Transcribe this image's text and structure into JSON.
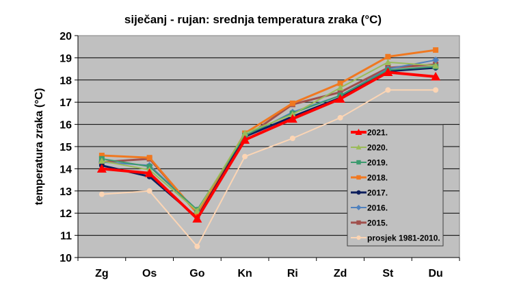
{
  "chart_data": {
    "type": "line",
    "title": "siječanj - rujan: srednja temperatura zraka (°C)",
    "xlabel": "",
    "ylabel": "temperatura zraka (°C)",
    "ylim": [
      10,
      20
    ],
    "yticks": [
      "10",
      "11",
      "12",
      "13",
      "14",
      "15",
      "16",
      "17",
      "18",
      "19",
      "20"
    ],
    "grid": true,
    "legend_position": "bottom-right (inside plot)",
    "plot_background": "#c0c0c0",
    "categories": [
      "Zg",
      "Os",
      "Go",
      "Kn",
      "Ri",
      "Zd",
      "St",
      "Du"
    ],
    "series": [
      {
        "name": "2021.",
        "color": "#ff0000",
        "marker": "triangle",
        "width": 4,
        "values": [
          14.0,
          13.8,
          11.75,
          15.3,
          16.25,
          17.15,
          18.35,
          18.15
        ]
      },
      {
        "name": "2020.",
        "color": "#9bbb59",
        "marker": "triangle",
        "width": 2,
        "values": [
          14.35,
          13.95,
          12.1,
          15.6,
          16.45,
          17.65,
          18.8,
          18.65
        ]
      },
      {
        "name": "2019.",
        "color": "#3c9a6e",
        "marker": "square",
        "width": 2,
        "values": [
          14.45,
          14.1,
          12.15,
          15.5,
          16.5,
          17.3,
          18.45,
          18.6
        ]
      },
      {
        "name": "2018.",
        "color": "#f07820",
        "marker": "square",
        "width": 3,
        "values": [
          14.6,
          14.5,
          12.0,
          15.6,
          16.95,
          17.85,
          19.05,
          19.35
        ]
      },
      {
        "name": "2017.",
        "color": "#0c1e5c",
        "marker": "circle",
        "width": 3,
        "values": [
          14.15,
          13.65,
          11.8,
          15.45,
          16.35,
          17.2,
          18.4,
          18.55
        ]
      },
      {
        "name": "2016.",
        "color": "#4f81bd",
        "marker": "diamond",
        "width": 2,
        "values": [
          14.3,
          14.15,
          12.15,
          15.45,
          16.55,
          17.3,
          18.5,
          18.9
        ]
      },
      {
        "name": "2015.",
        "color": "#a0504c",
        "marker": "square",
        "width": 3,
        "values": [
          14.3,
          14.45,
          12.0,
          15.4,
          16.9,
          17.45,
          18.55,
          18.7
        ]
      },
      {
        "name": "prosjek 1981-2010.",
        "color": "#fcd5b4",
        "marker": "circle",
        "width": 2,
        "values": [
          12.85,
          13.0,
          10.5,
          14.55,
          15.37,
          16.3,
          17.55,
          17.55
        ]
      }
    ]
  }
}
